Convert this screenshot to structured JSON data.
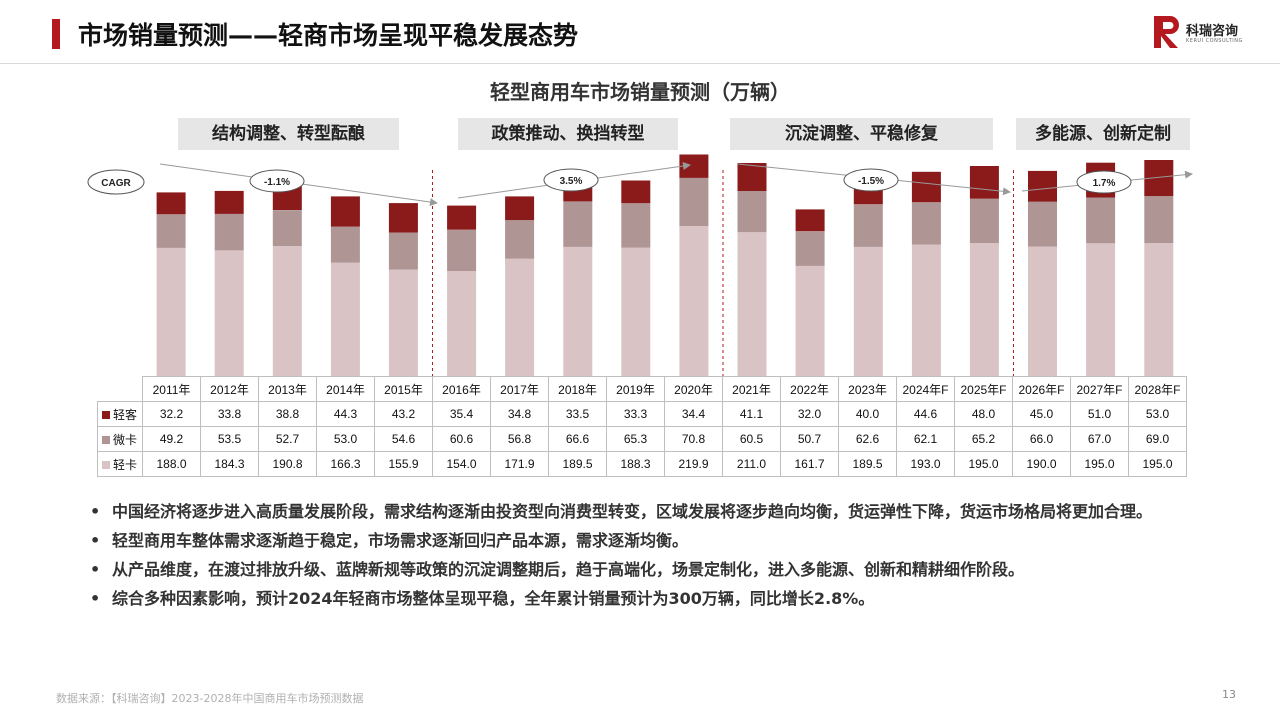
{
  "header": {
    "title": "市场销量预测——轻商市场呈现平稳发展态势"
  },
  "logo": {
    "name": "科瑞咨询",
    "sub": "KERUI CONSULTING",
    "mark": "R"
  },
  "colors": {
    "accent": "#b3191f",
    "light_bus": "#8b1a1a",
    "micro_truck": "#b09595",
    "light_truck": "#d9c3c5"
  },
  "phases": [
    {
      "label": "结构调整、转型酝酿"
    },
    {
      "label": "政策推动、换挡转型"
    },
    {
      "label": "沉淀调整、平稳修复"
    },
    {
      "label": "多能源、创新定制"
    }
  ],
  "cagr": {
    "label": "CAGR",
    "values": [
      "-1.1%",
      "3.5%",
      "-1.5%",
      "1.7%"
    ]
  },
  "chart_data": {
    "type": "bar",
    "stacked": true,
    "title": "轻型商用车市场销量预测（万辆）",
    "categories": [
      "2011年",
      "2012年",
      "2013年",
      "2014年",
      "2015年",
      "2016年",
      "2017年",
      "2018年",
      "2019年",
      "2020年",
      "2021年",
      "2022年",
      "2023年",
      "2024年F",
      "2025年F",
      "2026年F",
      "2027年F",
      "2028年F"
    ],
    "series": [
      {
        "name": "轻卡",
        "values": [
          188.0,
          184.3,
          190.8,
          166.3,
          155.9,
          154.0,
          171.9,
          189.5,
          188.3,
          219.9,
          211.0,
          161.7,
          189.5,
          193.0,
          195.0,
          190.0,
          195.0,
          195.0
        ]
      },
      {
        "name": "微卡",
        "values": [
          49.2,
          53.5,
          52.7,
          53.0,
          54.6,
          60.6,
          56.8,
          66.6,
          65.3,
          70.8,
          60.5,
          50.7,
          62.6,
          62.1,
          65.2,
          66.0,
          67.0,
          69.0
        ]
      },
      {
        "name": "轻客",
        "values": [
          32.2,
          33.8,
          38.8,
          44.3,
          43.2,
          35.4,
          34.8,
          33.5,
          33.3,
          34.4,
          41.1,
          32.0,
          40.0,
          44.6,
          48.0,
          45.0,
          51.0,
          53.0
        ]
      }
    ],
    "table_rows": [
      {
        "name": "轻客",
        "values": [
          "32.2",
          "33.8",
          "38.8",
          "44.3",
          "43.2",
          "35.4",
          "34.8",
          "33.5",
          "33.3",
          "34.4",
          "41.1",
          "32.0",
          "40.0",
          "44.6",
          "48.0",
          "45.0",
          "51.0",
          "53.0"
        ]
      },
      {
        "name": "微卡",
        "values": [
          "49.2",
          "53.5",
          "52.7",
          "53.0",
          "54.6",
          "60.6",
          "56.8",
          "66.6",
          "65.3",
          "70.8",
          "60.5",
          "50.7",
          "62.6",
          "62.1",
          "65.2",
          "66.0",
          "67.0",
          "69.0"
        ]
      },
      {
        "name": "轻卡",
        "values": [
          "188.0",
          "184.3",
          "190.8",
          "166.3",
          "155.9",
          "154.0",
          "171.9",
          "189.5",
          "188.3",
          "219.9",
          "211.0",
          "161.7",
          "189.5",
          "193.0",
          "195.0",
          "190.0",
          "195.0",
          "195.0"
        ]
      }
    ],
    "ylim": [
      0,
      325
    ],
    "grid": false
  },
  "bullets": [
    "中国经济将逐步进入高质量发展阶段，需求结构逐渐由投资型向消费型转变，区域发展将逐步趋向均衡，货运弹性下降，货运市场格局将更加合理。",
    "轻型商用车整体需求逐渐趋于稳定，市场需求逐渐回归产品本源，需求逐渐均衡。",
    "从产品维度，在渡过排放升级、蓝牌新规等政策的沉淀调整期后，趋于高端化，场景定制化，进入多能源、创新和精耕细作阶段。",
    "综合多种因素影响，预计2024年轻商市场整体呈现平稳，全年累计销量预计为300万辆，同比增长2.8%。"
  ],
  "bullet_marker": "•",
  "footer": {
    "source": "数据来源：【科瑞咨询】2023-2028年中国商用车市场预测数据",
    "page": "13"
  }
}
